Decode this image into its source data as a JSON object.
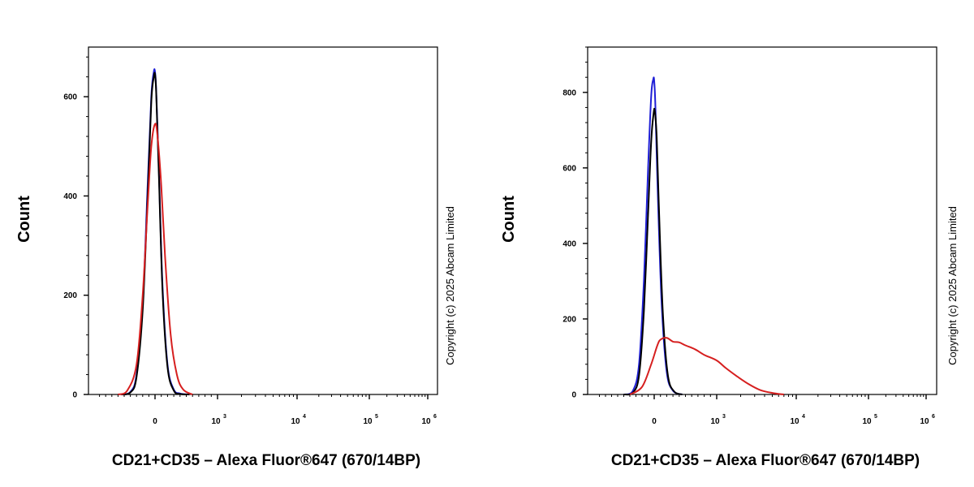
{
  "chart_data": [
    {
      "type": "line",
      "ylabel": "Count",
      "xlabel": "CD21+CD35 – Alexa Fluor®647 (670/14BP)",
      "copyright": "Copyright (c) 2025 Abcam Limited",
      "x_scale": "biexponential",
      "ylim": [
        0,
        700
      ],
      "y_ticks": [
        {
          "value": 0,
          "label": "0"
        },
        {
          "value": 200,
          "label": "200"
        },
        {
          "value": 400,
          "label": "400"
        },
        {
          "value": 600,
          "label": "600"
        }
      ],
      "x_ticks": [
        {
          "value": 0,
          "label": "0",
          "exp": ""
        },
        {
          "value": 1000,
          "label": "10",
          "exp": "3"
        },
        {
          "value": 10000,
          "label": "10",
          "exp": "4"
        },
        {
          "value": 100000,
          "label": "10",
          "exp": "5"
        },
        {
          "value": 1000000,
          "label": "10",
          "exp": "6"
        }
      ],
      "series": [
        {
          "color": "#1f1fd6",
          "x": [
            -550,
            -400,
            -300,
            -200,
            -120,
            -60,
            -20,
            0,
            20,
            60,
            120,
            200,
            300,
            400,
            550
          ],
          "y": [
            0,
            5,
            40,
            180,
            420,
            600,
            650,
            650,
            610,
            460,
            220,
            60,
            10,
            2,
            0
          ]
        },
        {
          "color": "#000000",
          "x": [
            -550,
            -400,
            -300,
            -200,
            -120,
            -60,
            -20,
            0,
            20,
            60,
            120,
            200,
            300,
            400,
            550
          ],
          "y": [
            0,
            4,
            35,
            170,
            400,
            590,
            640,
            645,
            605,
            450,
            210,
            55,
            8,
            1,
            0
          ]
        },
        {
          "color": "#d61f1f",
          "x": [
            -600,
            -450,
            -300,
            -200,
            -120,
            -60,
            0,
            40,
            100,
            160,
            250,
            350,
            450,
            600
          ],
          "y": [
            0,
            8,
            60,
            200,
            380,
            500,
            545,
            520,
            420,
            280,
            120,
            40,
            10,
            0
          ]
        }
      ]
    },
    {
      "type": "line",
      "ylabel": "Count",
      "xlabel": "CD21+CD35 – Alexa Fluor®647 (670/14BP)",
      "copyright": "Copyright (c) 2025 Abcam Limited",
      "x_scale": "biexponential",
      "ylim": [
        0,
        920
      ],
      "y_ticks": [
        {
          "value": 0,
          "label": "0"
        },
        {
          "value": 200,
          "label": "200"
        },
        {
          "value": 400,
          "label": "400"
        },
        {
          "value": 600,
          "label": "600"
        },
        {
          "value": 800,
          "label": "800"
        }
      ],
      "x_ticks": [
        {
          "value": 0,
          "label": "0",
          "exp": ""
        },
        {
          "value": 1000,
          "label": "10",
          "exp": "3"
        },
        {
          "value": 10000,
          "label": "10",
          "exp": "4"
        },
        {
          "value": 100000,
          "label": "10",
          "exp": "5"
        },
        {
          "value": 1000000,
          "label": "10",
          "exp": "6"
        }
      ],
      "series": [
        {
          "color": "#1f1fd6",
          "x": [
            -500,
            -350,
            -250,
            -170,
            -100,
            -50,
            -15,
            0,
            20,
            60,
            120,
            200,
            300,
            450
          ],
          "y": [
            0,
            10,
            80,
            300,
            600,
            790,
            835,
            830,
            760,
            520,
            240,
            60,
            10,
            0
          ]
        },
        {
          "color": "#000000",
          "x": [
            -500,
            -350,
            -250,
            -170,
            -100,
            -50,
            -10,
            10,
            40,
            80,
            140,
            220,
            320,
            450
          ],
          "y": [
            0,
            5,
            50,
            220,
            480,
            670,
            745,
            750,
            680,
            470,
            210,
            50,
            8,
            0
          ]
        },
        {
          "color": "#d61f1f",
          "x": [
            -400,
            -200,
            -50,
            50,
            100,
            200,
            300,
            400,
            500,
            650,
            800,
            1000,
            1300,
            1800,
            2500,
            3500,
            5000,
            7000
          ],
          "y": [
            0,
            20,
            80,
            130,
            145,
            150,
            140,
            138,
            130,
            120,
            105,
            90,
            70,
            48,
            28,
            12,
            4,
            0
          ]
        }
      ]
    }
  ]
}
